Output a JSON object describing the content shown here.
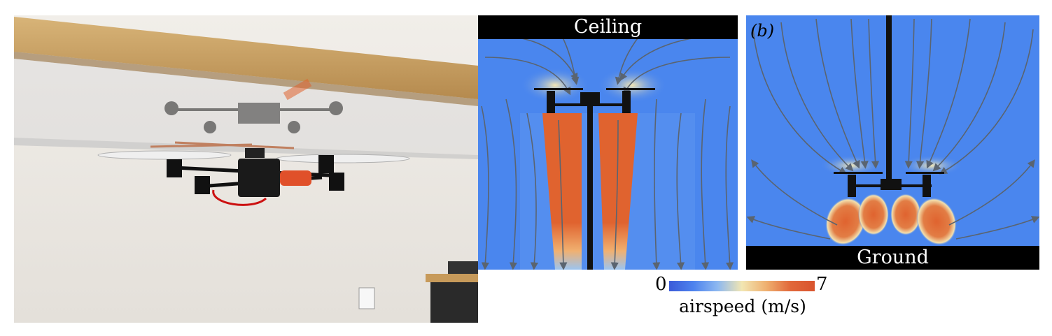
{
  "panels": {
    "simulation_a": {
      "top_boundary_label": "Ceiling"
    },
    "simulation_b": {
      "panel_letter": "(b)",
      "bottom_boundary_label": "Ground"
    }
  },
  "colorbar": {
    "min_label": "0",
    "max_label": "7",
    "title": "airspeed (m/s)",
    "colors": [
      "#3a5ad8",
      "#4d82ee",
      "#8db8f0",
      "#f2e6b2",
      "#efb070",
      "#e1683a",
      "#d9542e"
    ]
  },
  "colors": {
    "background_flow": "#4a86ee",
    "high_speed": "#e0632f",
    "streamline": "#5a6470",
    "boundary": "#000000",
    "photo_wall": "#e9e6e1",
    "wood_beam": "#c9a46a"
  },
  "icons": [
    "quadrotor-drone-photo",
    "streamline-arrow",
    "rotor-icon"
  ]
}
